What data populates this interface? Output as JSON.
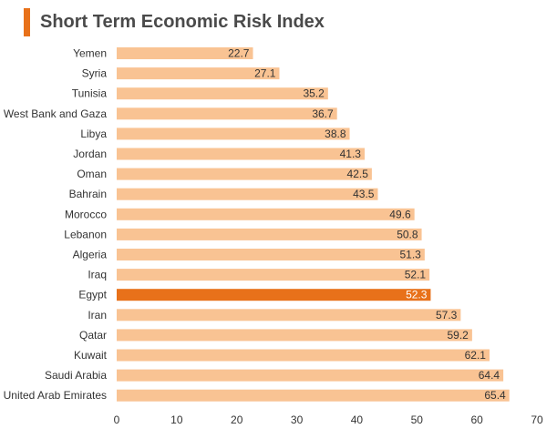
{
  "colors": {
    "accent": "#e8711a",
    "bar": "#f9c393",
    "highlight_bar": "#e8711a"
  },
  "chart_data": {
    "type": "bar",
    "orientation": "horizontal",
    "title": "Short Term Economic Risk Index",
    "xlabel": "",
    "ylabel": "",
    "xlim": [
      0,
      70
    ],
    "xticks": [
      0,
      10,
      20,
      30,
      40,
      50,
      60,
      70
    ],
    "grid": false,
    "highlight": "Egypt",
    "categories": [
      "Yemen",
      "Syria",
      "Tunisia",
      "West Bank and Gaza",
      "Libya",
      "Jordan",
      "Oman",
      "Bahrain",
      "Morocco",
      "Lebanon",
      "Algeria",
      "Iraq",
      "Egypt",
      "Iran",
      "Qatar",
      "Kuwait",
      "Saudi Arabia",
      "United Arab Emirates"
    ],
    "values": [
      22.7,
      27.1,
      35.2,
      36.7,
      38.8,
      41.3,
      42.5,
      43.5,
      49.6,
      50.8,
      51.3,
      52.1,
      52.3,
      57.3,
      59.2,
      62.1,
      64.4,
      65.4
    ],
    "value_labels": [
      "22.7",
      "27.1",
      "35.2",
      "36.7",
      "38.8",
      "41.3",
      "42.5",
      "43.5",
      "49.6",
      "50.8",
      "51.3",
      "52.1",
      "52.3",
      "57.3",
      "59.2",
      "62.1",
      "64.4",
      "65.4"
    ]
  }
}
